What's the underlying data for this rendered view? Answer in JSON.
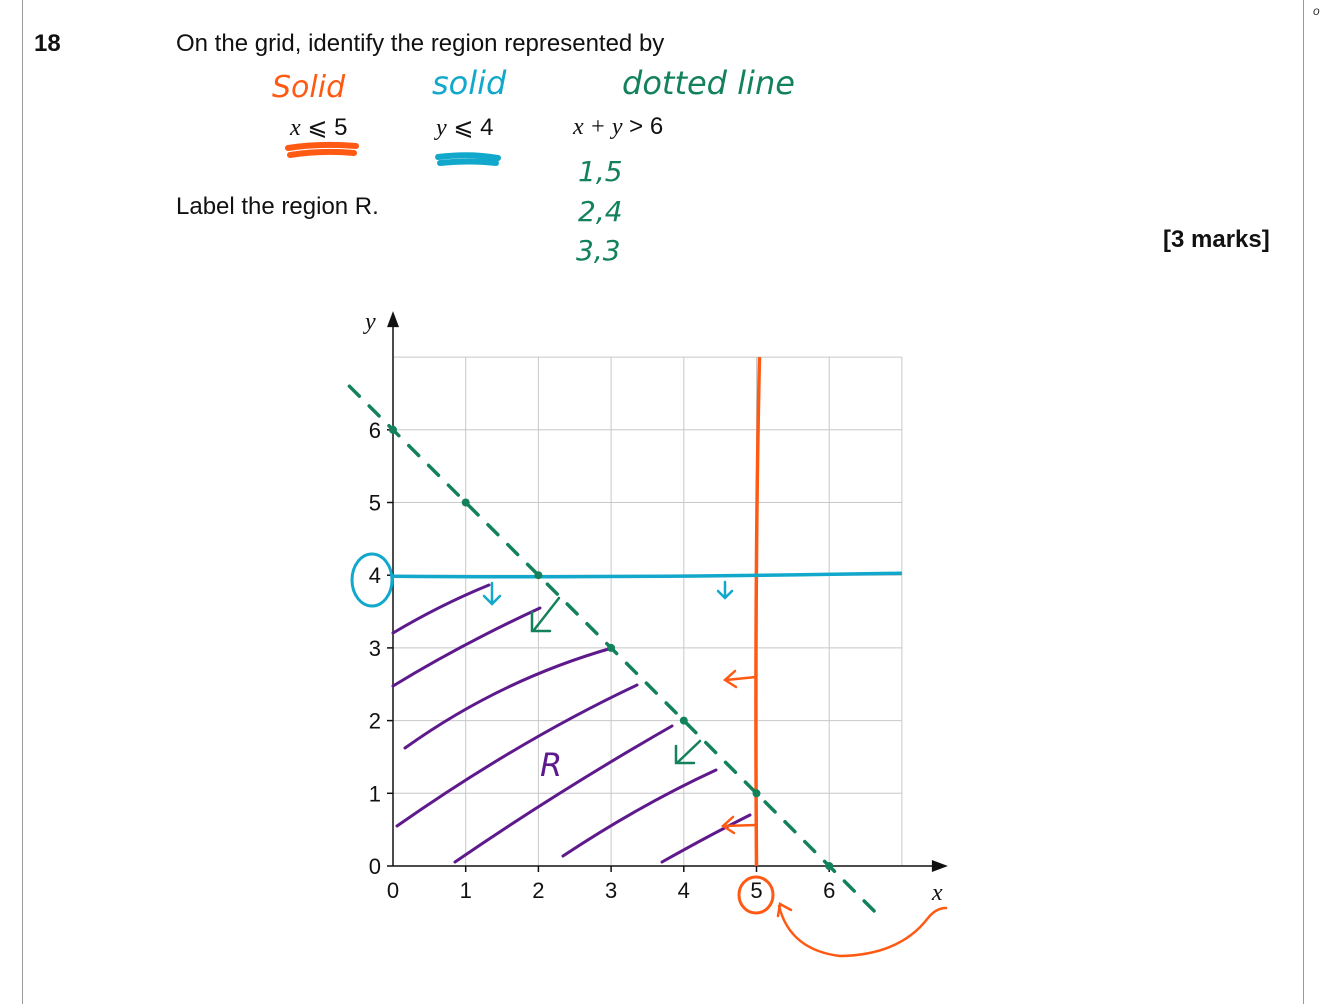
{
  "page": {
    "corner_text": "o",
    "question_number": "18",
    "question_text": "On the grid, identify the region represented by",
    "inequalities": [
      {
        "var": "x",
        "op": "⩽",
        "value": "5"
      },
      {
        "var": "y",
        "op": "⩽",
        "value": "4"
      },
      {
        "var": "x + y",
        "op": ">",
        "value": "6"
      }
    ],
    "instruction": "Label the region R.",
    "marks": "[3 marks]"
  },
  "annotations": {
    "solid_orange": "Solid",
    "solid_blue": "solid",
    "dotted_line": "dotted line",
    "points": [
      "1,5",
      "2,4",
      "3,3"
    ],
    "region_label": "R",
    "colors": {
      "orange": "#ff5a14",
      "blue": "#12a8cc",
      "green": "#13825c",
      "purple": "#5e1a8c"
    }
  },
  "chart_data": {
    "type": "line",
    "xlabel": "x",
    "ylabel": "y",
    "xlim": [
      0,
      7
    ],
    "ylim": [
      0,
      7
    ],
    "x_ticks": [
      "0",
      "1",
      "2",
      "3",
      "4",
      "5",
      "6"
    ],
    "y_ticks": [
      "0",
      "1",
      "2",
      "3",
      "4",
      "5",
      "6"
    ],
    "grid": true,
    "lines": [
      {
        "equation": "x = 5",
        "style": "solid",
        "color": "#ff5a14"
      },
      {
        "equation": "y = 4",
        "style": "solid",
        "color": "#12a8cc"
      },
      {
        "equation": "x + y = 6",
        "style": "dashed",
        "color": "#13825c",
        "points": [
          [
            0,
            6
          ],
          [
            1,
            5
          ],
          [
            2,
            4
          ],
          [
            3,
            3
          ],
          [
            4,
            2
          ],
          [
            5,
            1
          ],
          [
            6,
            0
          ]
        ]
      }
    ]
  }
}
